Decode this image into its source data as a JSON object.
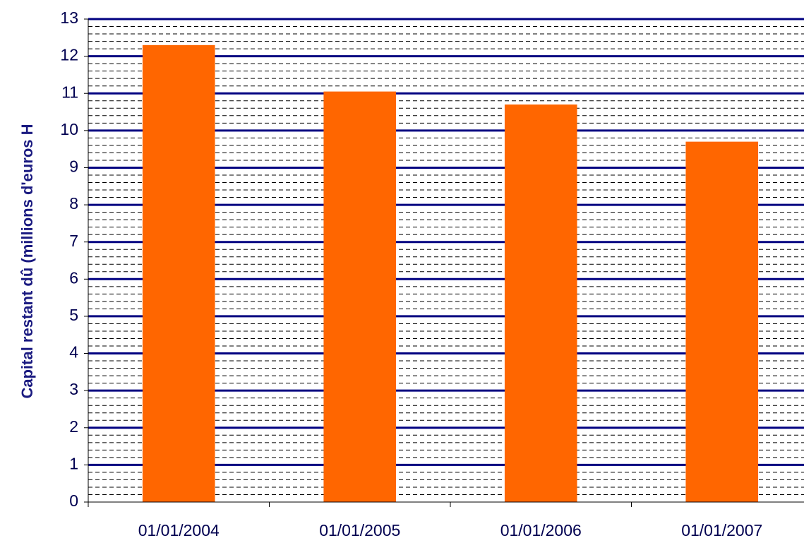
{
  "chart_data": {
    "type": "bar",
    "y_label": "Capital restant dû (millions d'euros H",
    "categories": [
      "01/01/2004",
      "01/01/2005",
      "01/01/2006",
      "01/01/2007"
    ],
    "values": [
      12.3,
      11.05,
      10.7,
      9.7
    ],
    "color": "#ff6600",
    "ylim": [
      0,
      13
    ],
    "yticks": [
      0,
      1,
      2,
      3,
      4,
      5,
      6,
      7,
      8,
      9,
      10,
      11,
      12,
      13
    ],
    "grid": true,
    "grid_color": "#000080",
    "minor_grid": true,
    "minor_per_major": 5
  }
}
